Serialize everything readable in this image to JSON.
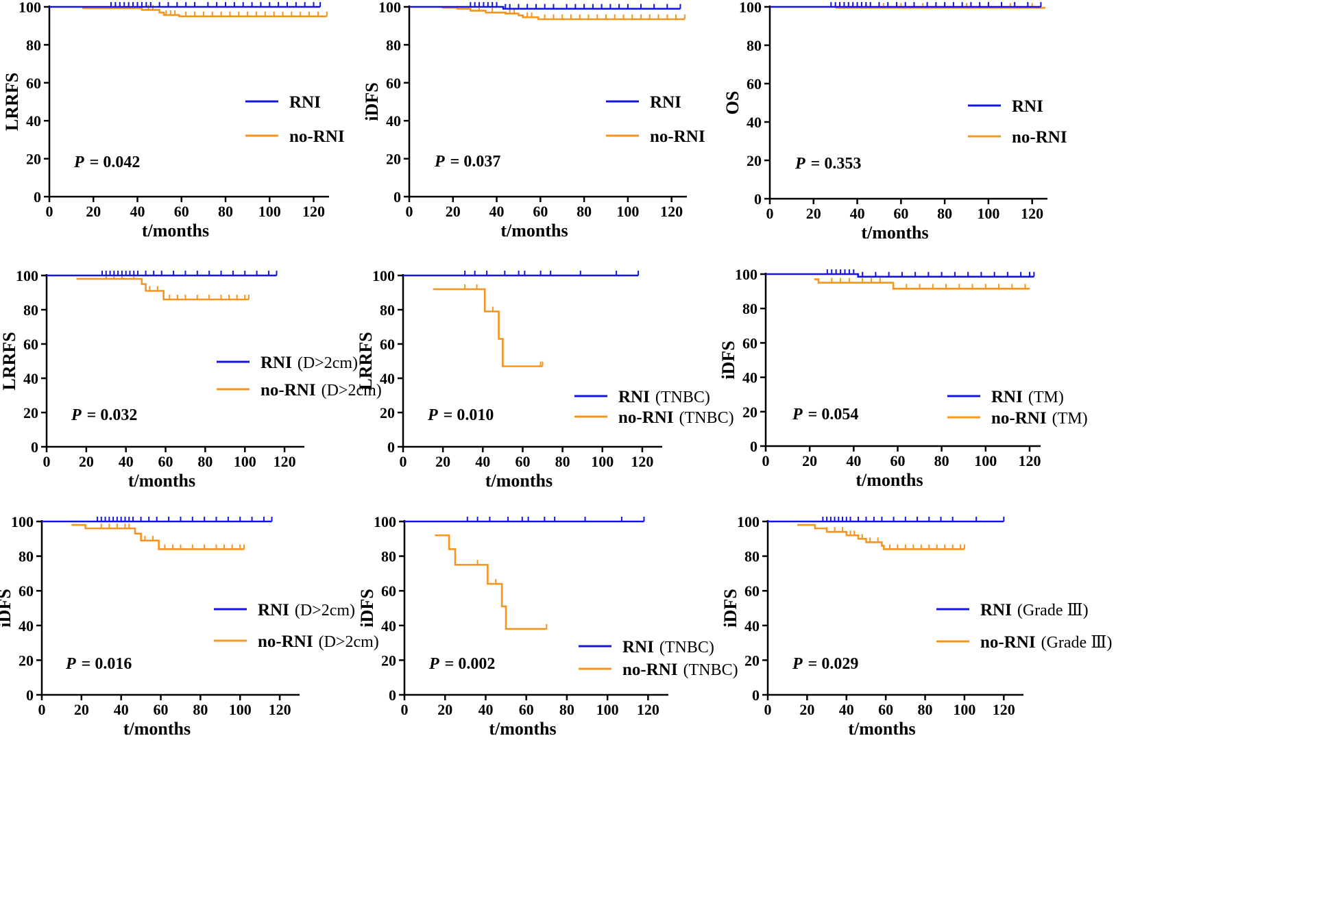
{
  "figure": {
    "colors": {
      "rni": "#1414e6",
      "no_rni": "#f7941d",
      "axis": "#000000"
    }
  },
  "chart_data": [
    {
      "type": "line",
      "ylabel": "LRRFS",
      "xlabel": "t/months",
      "xlim": [
        0,
        127
      ],
      "ylim": [
        0,
        100
      ],
      "xticks": [
        "0",
        "20",
        "40",
        "60",
        "80",
        "100",
        "120"
      ],
      "yticks": [
        "0",
        "20",
        "40",
        "60",
        "80",
        "100"
      ],
      "p_label": "P",
      "p_value": "= 0.042",
      "series": [
        {
          "name": "RNI",
          "subtitle": "",
          "steps": [
            [
              0,
              100
            ],
            [
              123,
              100
            ]
          ],
          "censor": [
            28,
            30,
            32,
            34,
            36,
            38,
            40,
            42,
            44,
            46,
            50,
            54,
            58,
            62,
            66,
            72,
            76,
            80,
            84,
            88,
            92,
            96,
            100,
            104,
            108,
            112,
            116,
            120,
            123
          ]
        },
        {
          "name": "no-RNI",
          "subtitle": "",
          "steps": [
            [
              15,
              99.3
            ],
            [
              42,
              98.4
            ],
            [
              50,
              97
            ],
            [
              52,
              95.7
            ],
            [
              59,
              95
            ],
            [
              126,
              95
            ]
          ],
          "censor": [
            30,
            45,
            47,
            53,
            55,
            57,
            62,
            66,
            70,
            74,
            78,
            82,
            86,
            90,
            94,
            98,
            102,
            106,
            110,
            114,
            118,
            122,
            126
          ]
        }
      ]
    },
    {
      "type": "line",
      "ylabel": "iDFS",
      "xlabel": "t/months",
      "xlim": [
        0,
        127
      ],
      "ylim": [
        0,
        100
      ],
      "xticks": [
        "0",
        "20",
        "40",
        "60",
        "80",
        "100",
        "120"
      ],
      "yticks": [
        "0",
        "20",
        "40",
        "60",
        "80",
        "100"
      ],
      "p_label": "P",
      "p_value": "= 0.037",
      "series": [
        {
          "name": "RNI",
          "subtitle": "",
          "steps": [
            [
              0,
              100
            ],
            [
              42,
              100
            ],
            [
              43,
              99
            ],
            [
              124,
              99
            ]
          ],
          "censor": [
            28,
            30,
            32,
            34,
            36,
            38,
            40,
            44,
            46,
            50,
            54,
            58,
            62,
            66,
            72,
            76,
            80,
            84,
            88,
            92,
            96,
            100,
            106,
            112,
            118,
            124
          ]
        },
        {
          "name": "no-RNI",
          "subtitle": "",
          "steps": [
            [
              15,
              99.5
            ],
            [
              22,
              99
            ],
            [
              28,
              98
            ],
            [
              35,
              97
            ],
            [
              44,
              96.5
            ],
            [
              50,
              95.5
            ],
            [
              52,
              94.5
            ],
            [
              59,
              93.5
            ],
            [
              126,
              93.5
            ]
          ],
          "censor": [
            32,
            38,
            46,
            48,
            54,
            56,
            62,
            66,
            70,
            74,
            78,
            82,
            86,
            90,
            94,
            98,
            102,
            106,
            110,
            114,
            118,
            122,
            126
          ]
        }
      ]
    },
    {
      "type": "line",
      "ylabel": "OS",
      "xlabel": "t/months",
      "xlim": [
        0,
        127
      ],
      "ylim": [
        0,
        100
      ],
      "xticks": [
        "0",
        "20",
        "40",
        "60",
        "80",
        "100",
        "120"
      ],
      "yticks": [
        "0",
        "20",
        "40",
        "60",
        "80",
        "100"
      ],
      "p_label": "P",
      "p_value": "= 0.353",
      "series": [
        {
          "name": "RNI",
          "subtitle": "",
          "steps": [
            [
              0,
              100
            ],
            [
              124,
              100
            ]
          ],
          "censor": [
            28,
            30,
            32,
            34,
            36,
            38,
            40,
            42,
            44,
            46,
            50,
            54,
            58,
            62,
            66,
            72,
            76,
            80,
            84,
            88,
            92,
            96,
            100,
            106,
            112,
            118,
            124
          ]
        },
        {
          "name": "no-RNI",
          "subtitle": "",
          "steps": [
            [
              30,
              99.5
            ],
            [
              126,
              99.5
            ]
          ],
          "censor": [
            44,
            52,
            60,
            70,
            80,
            90,
            100,
            110,
            120
          ]
        }
      ]
    },
    {
      "type": "line",
      "ylabel": "LRRFS",
      "xlabel": "t/months",
      "xlim": [
        0,
        130
      ],
      "ylim": [
        0,
        100
      ],
      "xticks": [
        "0",
        "20",
        "40",
        "60",
        "80",
        "100",
        "120"
      ],
      "yticks": [
        "0",
        "20",
        "40",
        "60",
        "80",
        "100"
      ],
      "p_label": "P",
      "p_value": "= 0.032",
      "series": [
        {
          "name": "RNI",
          "subtitle": "(D>2cm)",
          "steps": [
            [
              0,
              100
            ],
            [
              116,
              100
            ]
          ],
          "censor": [
            28,
            30,
            32,
            34,
            36,
            38,
            40,
            42,
            44,
            46,
            50,
            54,
            58,
            64,
            70,
            76,
            82,
            88,
            94,
            100,
            106,
            112,
            116
          ]
        },
        {
          "name": "no-RNI",
          "subtitle": "(D>2cm)",
          "steps": [
            [
              15,
              98
            ],
            [
              48,
              95
            ],
            [
              50,
              91
            ],
            [
              59,
              86
            ],
            [
              102,
              86
            ]
          ],
          "censor": [
            30,
            34,
            38,
            44,
            52,
            56,
            62,
            66,
            70,
            76,
            82,
            88,
            92,
            96,
            100,
            102
          ]
        }
      ]
    },
    {
      "type": "line",
      "ylabel": "LRRFS",
      "xlabel": "t/months",
      "xlim": [
        0,
        130
      ],
      "ylim": [
        0,
        100
      ],
      "xticks": [
        "0",
        "20",
        "40",
        "60",
        "80",
        "100",
        "120"
      ],
      "yticks": [
        "0",
        "20",
        "40",
        "60",
        "80",
        "100"
      ],
      "p_label": "P",
      "p_value": "= 0.010",
      "series": [
        {
          "name": "RNI",
          "subtitle": "(TNBC)",
          "steps": [
            [
              0,
              100
            ],
            [
              118,
              100
            ]
          ],
          "censor": [
            31,
            36,
            42,
            51,
            58,
            61,
            69,
            74,
            89,
            107,
            118
          ]
        },
        {
          "name": "no-RNI",
          "subtitle": "(TNBC)",
          "steps": [
            [
              15,
              92
            ],
            [
              41,
              79
            ],
            [
              48,
              63
            ],
            [
              50,
              47
            ],
            [
              70,
              47
            ]
          ],
          "censor": [
            31,
            37,
            45,
            69,
            70
          ]
        }
      ]
    },
    {
      "type": "line",
      "ylabel": "iDFS",
      "xlabel": "t/months",
      "xlim": [
        0,
        125
      ],
      "ylim": [
        0,
        100
      ],
      "xticks": [
        "0",
        "20",
        "40",
        "60",
        "80",
        "100",
        "120"
      ],
      "yticks": [
        "0",
        "20",
        "40",
        "60",
        "80",
        "100"
      ],
      "p_label": "P",
      "p_value": "= 0.054",
      "series": [
        {
          "name": "RNI",
          "subtitle": "(TM)",
          "steps": [
            [
              0,
              100
            ],
            [
              41,
              100
            ],
            [
              42,
              98.5
            ],
            [
              122,
              98.5
            ]
          ],
          "censor": [
            28,
            30,
            32,
            34,
            36,
            38,
            40,
            44,
            50,
            56,
            62,
            68,
            74,
            80,
            86,
            92,
            98,
            104,
            110,
            116,
            120,
            122
          ]
        },
        {
          "name": "no-RNI",
          "subtitle": "(TM)",
          "steps": [
            [
              22,
              97
            ],
            [
              24,
              95
            ],
            [
              58,
              91.5
            ],
            [
              120,
              91.5
            ]
          ],
          "censor": [
            30,
            34,
            38,
            44,
            48,
            52,
            64,
            70,
            76,
            82,
            88,
            94,
            100,
            106,
            112,
            118
          ]
        }
      ]
    },
    {
      "type": "line",
      "ylabel": "iDFS",
      "xlabel": "t/months",
      "xlim": [
        0,
        130
      ],
      "ylim": [
        0,
        100
      ],
      "xticks": [
        "0",
        "20",
        "40",
        "60",
        "80",
        "100",
        "120"
      ],
      "yticks": [
        "0",
        "20",
        "40",
        "60",
        "80",
        "100"
      ],
      "p_label": "P",
      "p_value": "= 0.016",
      "series": [
        {
          "name": "RNI",
          "subtitle": "(D>2cm)",
          "steps": [
            [
              0,
              100
            ],
            [
              116,
              100
            ]
          ],
          "censor": [
            28,
            30,
            32,
            34,
            36,
            38,
            40,
            42,
            44,
            46,
            50,
            54,
            58,
            64,
            70,
            76,
            82,
            88,
            94,
            100,
            106,
            112,
            116
          ]
        },
        {
          "name": "no-RNI",
          "subtitle": "(D>2cm)",
          "steps": [
            [
              15,
              98
            ],
            [
              22,
              96
            ],
            [
              47,
              93
            ],
            [
              50,
              89
            ],
            [
              59,
              84
            ],
            [
              102,
              84
            ]
          ],
          "censor": [
            30,
            34,
            38,
            42,
            44,
            52,
            56,
            62,
            66,
            70,
            76,
            82,
            88,
            92,
            96,
            100,
            102
          ]
        }
      ]
    },
    {
      "type": "line",
      "ylabel": "iDFS",
      "xlabel": "t/months",
      "xlim": [
        0,
        130
      ],
      "ylim": [
        0,
        100
      ],
      "xticks": [
        "0",
        "20",
        "40",
        "60",
        "80",
        "100",
        "120"
      ],
      "yticks": [
        "0",
        "20",
        "40",
        "60",
        "80",
        "100"
      ],
      "p_label": "P",
      "p_value": "= 0.002",
      "series": [
        {
          "name": "RNI",
          "subtitle": "(TNBC)",
          "steps": [
            [
              0,
              100
            ],
            [
              118,
              100
            ]
          ],
          "censor": [
            31,
            36,
            42,
            51,
            58,
            61,
            69,
            74,
            89,
            107,
            118
          ]
        },
        {
          "name": "no-RNI",
          "subtitle": "(TNBC)",
          "steps": [
            [
              15,
              92
            ],
            [
              22,
              84
            ],
            [
              25,
              75
            ],
            [
              41,
              64
            ],
            [
              48,
              51
            ],
            [
              50,
              38
            ],
            [
              70,
              38
            ]
          ],
          "censor": [
            36,
            45,
            70
          ]
        }
      ]
    },
    {
      "type": "line",
      "ylabel": "iDFS",
      "xlabel": "t/months",
      "xlim": [
        0,
        130
      ],
      "ylim": [
        0,
        100
      ],
      "xticks": [
        "0",
        "20",
        "40",
        "60",
        "80",
        "100",
        "120"
      ],
      "yticks": [
        "0",
        "20",
        "40",
        "60",
        "80",
        "100"
      ],
      "p_label": "P",
      "p_value": "= 0.029",
      "series": [
        {
          "name": "RNI",
          "subtitle": "(Grade Ⅲ)",
          "steps": [
            [
              0,
              100
            ],
            [
              120,
              100
            ]
          ],
          "censor": [
            28,
            30,
            32,
            34,
            36,
            38,
            40,
            42,
            46,
            50,
            54,
            58,
            64,
            70,
            76,
            82,
            88,
            94,
            106,
            120
          ]
        },
        {
          "name": "no-RNI",
          "subtitle": "(Grade Ⅲ)",
          "steps": [
            [
              15,
              98
            ],
            [
              24,
              96
            ],
            [
              30,
              94
            ],
            [
              40,
              92
            ],
            [
              46,
              90
            ],
            [
              50,
              88
            ],
            [
              58,
              86
            ],
            [
              59,
              84
            ],
            [
              100,
              84
            ]
          ],
          "censor": [
            30,
            34,
            38,
            42,
            44,
            48,
            52,
            56,
            62,
            66,
            70,
            74,
            78,
            82,
            86,
            90,
            94,
            98,
            100
          ]
        }
      ]
    }
  ]
}
